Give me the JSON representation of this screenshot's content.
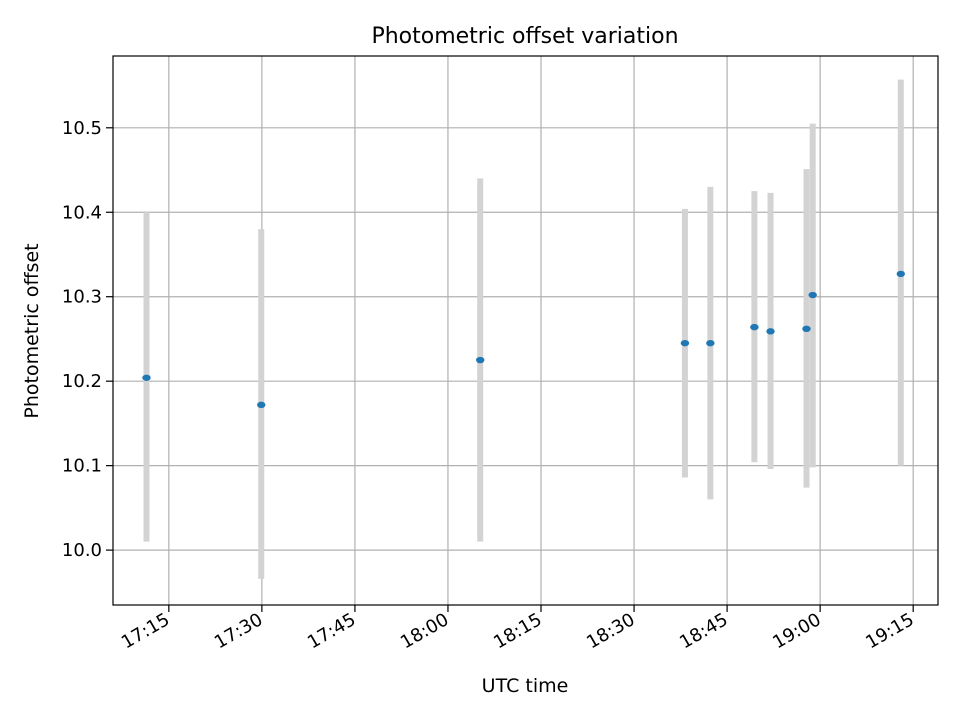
{
  "chart_data": {
    "type": "scatter",
    "title": "Photometric offset variation",
    "xlabel": "UTC time",
    "ylabel": "Photometric offset",
    "x_range": [
      "17:06",
      "19:19"
    ],
    "ylim": [
      9.935,
      10.585
    ],
    "x_ticks": [
      "17:15",
      "17:30",
      "17:45",
      "18:00",
      "18:15",
      "18:30",
      "18:45",
      "19:00",
      "19:15"
    ],
    "y_ticks": [
      "10.0",
      "10.1",
      "10.2",
      "10.3",
      "10.4",
      "10.5"
    ],
    "grid": true,
    "point_color": "#1f77b4",
    "errorbar_color": "#d3d3d3",
    "points": [
      {
        "time": "17:11:24",
        "y": 10.204,
        "y_low": 10.01,
        "y_high": 10.4
      },
      {
        "time": "17:29:54",
        "y": 10.172,
        "y_low": 9.966,
        "y_high": 10.38
      },
      {
        "time": "18:05:12",
        "y": 10.225,
        "y_low": 10.01,
        "y_high": 10.44
      },
      {
        "time": "18:38:12",
        "y": 10.245,
        "y_low": 10.086,
        "y_high": 10.404
      },
      {
        "time": "18:42:18",
        "y": 10.245,
        "y_low": 10.06,
        "y_high": 10.43
      },
      {
        "time": "18:49:24",
        "y": 10.264,
        "y_low": 10.104,
        "y_high": 10.425
      },
      {
        "time": "18:52:00",
        "y": 10.259,
        "y_low": 10.096,
        "y_high": 10.423
      },
      {
        "time": "18:57:48",
        "y": 10.262,
        "y_low": 10.074,
        "y_high": 10.451
      },
      {
        "time": "18:58:48",
        "y": 10.302,
        "y_low": 10.098,
        "y_high": 10.505
      },
      {
        "time": "19:13:00",
        "y": 10.327,
        "y_low": 10.1,
        "y_high": 10.557
      }
    ]
  }
}
